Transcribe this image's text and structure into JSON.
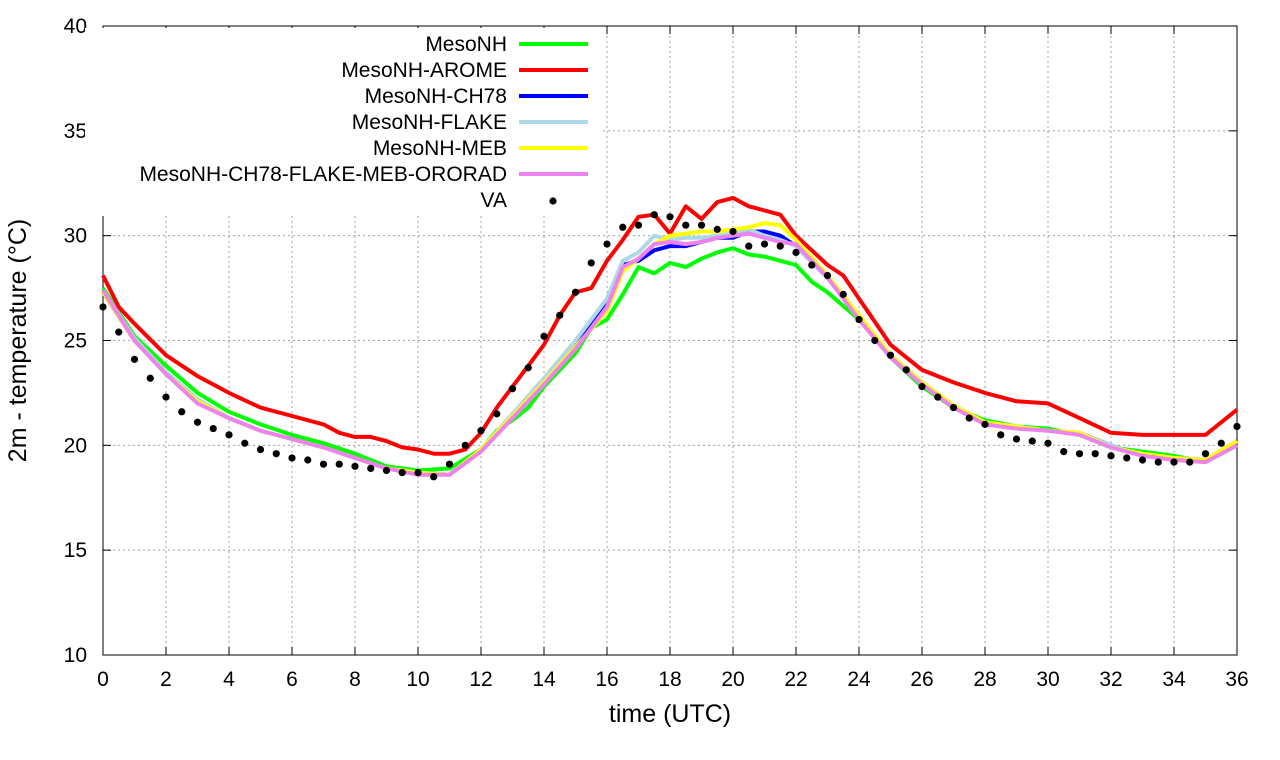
{
  "chart_data": {
    "type": "line",
    "xlabel": "time (UTC)",
    "ylabel": "2m - temperature (°C)",
    "xlim": [
      0,
      36
    ],
    "ylim": [
      10,
      40
    ],
    "xticks": [
      "0",
      "2",
      "4",
      "6",
      "8",
      "10",
      "12",
      "14",
      "16",
      "18",
      "20",
      "22",
      "24",
      "26",
      "28",
      "30",
      "32",
      "34",
      "36"
    ],
    "yticks": [
      "10",
      "15",
      "20",
      "25",
      "30",
      "35",
      "40"
    ],
    "grid": true,
    "legend_position": "top-center",
    "series": [
      {
        "name": "MesoNH",
        "color": "#00ff00",
        "style": "line",
        "x": [
          0,
          1,
          2,
          3,
          4,
          5,
          6,
          7,
          8,
          9,
          10,
          11,
          12,
          12.5,
          13,
          13.5,
          14,
          14.5,
          15,
          15.5,
          16,
          16.5,
          17,
          17.5,
          18,
          18.5,
          19,
          19.5,
          20,
          20.5,
          21,
          21.5,
          22,
          22.5,
          23,
          24,
          25,
          26,
          27,
          28,
          29,
          30,
          31,
          32,
          33,
          34,
          35,
          36
        ],
        "y": [
          27.5,
          25.2,
          23.8,
          22.5,
          21.6,
          21.0,
          20.5,
          20.1,
          19.6,
          19.0,
          18.8,
          18.9,
          19.8,
          20.7,
          21.2,
          21.8,
          22.8,
          23.6,
          24.4,
          25.6,
          26.0,
          27.2,
          28.5,
          28.2,
          28.7,
          28.5,
          28.9,
          29.2,
          29.4,
          29.1,
          29.0,
          28.8,
          28.6,
          27.8,
          27.3,
          26.0,
          24.2,
          22.8,
          21.8,
          21.2,
          20.9,
          20.8,
          20.5,
          19.9,
          19.7,
          19.5,
          19.2,
          20.0
        ]
      },
      {
        "name": "MesoNH-AROME",
        "color": "#ff0000",
        "style": "line",
        "x": [
          0,
          0.5,
          1,
          2,
          3,
          4,
          5,
          6,
          7,
          7.5,
          8,
          8.5,
          9,
          9.5,
          10,
          10.5,
          11,
          11.5,
          12,
          12.5,
          13,
          13.5,
          14,
          14.5,
          15,
          15.5,
          16,
          16.5,
          17,
          17.5,
          18,
          18.5,
          19,
          19.5,
          20,
          20.5,
          21,
          21.5,
          22,
          22.5,
          23,
          23.5,
          24,
          25,
          26,
          27,
          28,
          29,
          30,
          31,
          32,
          33,
          34,
          35,
          36
        ],
        "y": [
          28.1,
          26.6,
          25.8,
          24.3,
          23.3,
          22.5,
          21.8,
          21.4,
          21.0,
          20.6,
          20.4,
          20.4,
          20.2,
          19.9,
          19.8,
          19.6,
          19.6,
          19.8,
          20.6,
          21.8,
          22.8,
          23.8,
          24.8,
          26.2,
          27.3,
          27.5,
          28.8,
          29.8,
          30.9,
          31.0,
          30.1,
          31.4,
          30.8,
          31.6,
          31.8,
          31.4,
          31.2,
          31.0,
          30.0,
          29.3,
          28.6,
          28.1,
          27.0,
          24.8,
          23.6,
          23.0,
          22.5,
          22.1,
          22.0,
          21.3,
          20.6,
          20.5,
          20.5,
          20.5,
          21.7
        ]
      },
      {
        "name": "MesoNH-CH78",
        "color": "#0000ff",
        "style": "line",
        "x": [
          0,
          1,
          2,
          3,
          4,
          5,
          6,
          7,
          8,
          9,
          10,
          11,
          12,
          13,
          14,
          15,
          16,
          16.5,
          17,
          17.5,
          18,
          18.5,
          19,
          19.5,
          20,
          20.5,
          21,
          21.5,
          22,
          23,
          24,
          25,
          26,
          27,
          28,
          29,
          30,
          31,
          32,
          33,
          34,
          35,
          36
        ],
        "y": [
          27.3,
          25.0,
          23.4,
          22.1,
          21.3,
          20.7,
          20.3,
          19.9,
          19.4,
          18.9,
          18.7,
          18.6,
          19.8,
          21.4,
          23.0,
          24.8,
          26.9,
          28.6,
          28.8,
          29.3,
          29.5,
          29.5,
          29.7,
          29.9,
          29.9,
          30.2,
          30.2,
          30.0,
          29.5,
          28.0,
          26.1,
          24.3,
          23.0,
          21.9,
          21.1,
          20.9,
          20.7,
          20.6,
          20.0,
          19.5,
          19.4,
          19.3,
          20.2
        ]
      },
      {
        "name": "MesoNH-FLAKE",
        "color": "#add8e6",
        "style": "line",
        "x": [
          0,
          1,
          2,
          3,
          4,
          5,
          6,
          7,
          8,
          9,
          10,
          11,
          12,
          13,
          14,
          15,
          16,
          16.5,
          17,
          17.5,
          18,
          18.5,
          19,
          19.5,
          20,
          20.5,
          21,
          21.5,
          22,
          23,
          24,
          25,
          26,
          27,
          28,
          29,
          30,
          31,
          32,
          33,
          34,
          35,
          36
        ],
        "y": [
          27.4,
          25.1,
          23.5,
          22.2,
          21.3,
          20.7,
          20.3,
          19.9,
          19.4,
          18.9,
          18.7,
          18.6,
          19.8,
          21.5,
          23.2,
          25.0,
          27.0,
          28.8,
          29.2,
          30.0,
          29.8,
          29.9,
          29.9,
          30.0,
          30.1,
          30.3,
          30.0,
          29.8,
          29.5,
          28.0,
          26.1,
          24.3,
          23.0,
          21.9,
          21.1,
          20.9,
          20.7,
          20.6,
          20.0,
          19.5,
          19.4,
          19.3,
          20.2
        ]
      },
      {
        "name": "MesoNH-MEB",
        "color": "#ffff00",
        "style": "line",
        "x": [
          0,
          1,
          2,
          3,
          4,
          5,
          6,
          7,
          8,
          9,
          10,
          11,
          12,
          13,
          14,
          15,
          16,
          16.5,
          17,
          17.5,
          18,
          18.5,
          19,
          19.5,
          20,
          20.5,
          21,
          21.5,
          22,
          23,
          24,
          25,
          26,
          27,
          28,
          29,
          30,
          31,
          32,
          33,
          34,
          35,
          36
        ],
        "y": [
          27.3,
          25.0,
          23.4,
          22.1,
          21.3,
          20.7,
          20.3,
          19.9,
          19.4,
          18.9,
          18.7,
          18.6,
          19.8,
          21.4,
          23.0,
          24.7,
          26.4,
          28.3,
          28.9,
          29.6,
          30.0,
          30.1,
          30.2,
          30.2,
          30.3,
          30.4,
          30.6,
          30.5,
          29.8,
          28.1,
          26.2,
          24.3,
          23.0,
          21.9,
          21.1,
          20.9,
          20.7,
          20.6,
          19.9,
          19.6,
          19.4,
          19.3,
          20.2
        ]
      },
      {
        "name": "MesoNH-CH78-FLAKE-MEB-ORORAD",
        "color": "#ee82ee",
        "style": "line",
        "x": [
          0,
          1,
          2,
          3,
          4,
          5,
          6,
          7,
          8,
          9,
          10,
          11,
          12,
          13,
          14,
          15,
          16,
          16.5,
          17,
          17.5,
          18,
          18.5,
          19,
          19.5,
          20,
          20.5,
          21,
          21.5,
          22,
          23,
          24,
          25,
          26,
          27,
          28,
          29,
          30,
          31,
          32,
          33,
          34,
          35,
          36
        ],
        "y": [
          27.4,
          25.0,
          23.4,
          22.0,
          21.3,
          20.7,
          20.3,
          19.9,
          19.4,
          18.9,
          18.6,
          18.6,
          19.7,
          21.3,
          22.9,
          24.6,
          26.6,
          28.5,
          28.9,
          29.6,
          29.7,
          29.6,
          29.7,
          29.9,
          30.0,
          30.1,
          29.9,
          29.7,
          29.6,
          28.0,
          26.0,
          24.2,
          22.9,
          21.8,
          21.0,
          20.8,
          20.7,
          20.5,
          19.9,
          19.5,
          19.3,
          19.2,
          20.0
        ]
      },
      {
        "name": "VA",
        "color": "#000000",
        "style": "points",
        "x": [
          0,
          0.5,
          1,
          1.5,
          2,
          2.5,
          3,
          3.5,
          4,
          4.5,
          5,
          5.5,
          6,
          6.5,
          7,
          7.5,
          8,
          8.5,
          9,
          9.5,
          10,
          10.5,
          11,
          11.5,
          12,
          12.5,
          13,
          13.5,
          14,
          14.5,
          15,
          15.5,
          16,
          16.5,
          17,
          17.5,
          18,
          18.5,
          19,
          19.5,
          20,
          20.5,
          21,
          21.5,
          22,
          22.5,
          23,
          23.5,
          24,
          24.5,
          25,
          25.5,
          26,
          26.5,
          27,
          27.5,
          28,
          28.5,
          29,
          29.5,
          30,
          30.5,
          31,
          31.5,
          32,
          32.5,
          33,
          33.5,
          34,
          34.5,
          35,
          35.5,
          36
        ],
        "y": [
          26.6,
          25.4,
          24.1,
          23.2,
          22.3,
          21.6,
          21.1,
          20.8,
          20.5,
          20.1,
          19.8,
          19.6,
          19.4,
          19.3,
          19.1,
          19.1,
          19.0,
          18.9,
          18.8,
          18.7,
          18.7,
          18.5,
          19.1,
          20.0,
          20.7,
          21.5,
          22.7,
          23.7,
          25.2,
          26.2,
          27.3,
          28.7,
          29.6,
          30.4,
          30.5,
          31.0,
          30.9,
          30.5,
          30.5,
          30.3,
          30.2,
          29.5,
          29.6,
          29.5,
          29.2,
          28.6,
          28.1,
          27.2,
          26.0,
          25.0,
          24.3,
          23.6,
          22.8,
          22.3,
          21.8,
          21.3,
          21.0,
          20.5,
          20.3,
          20.2,
          20.1,
          19.7,
          19.6,
          19.6,
          19.5,
          19.4,
          19.3,
          19.2,
          19.2,
          19.2,
          19.6,
          20.1,
          20.9
        ]
      }
    ]
  }
}
